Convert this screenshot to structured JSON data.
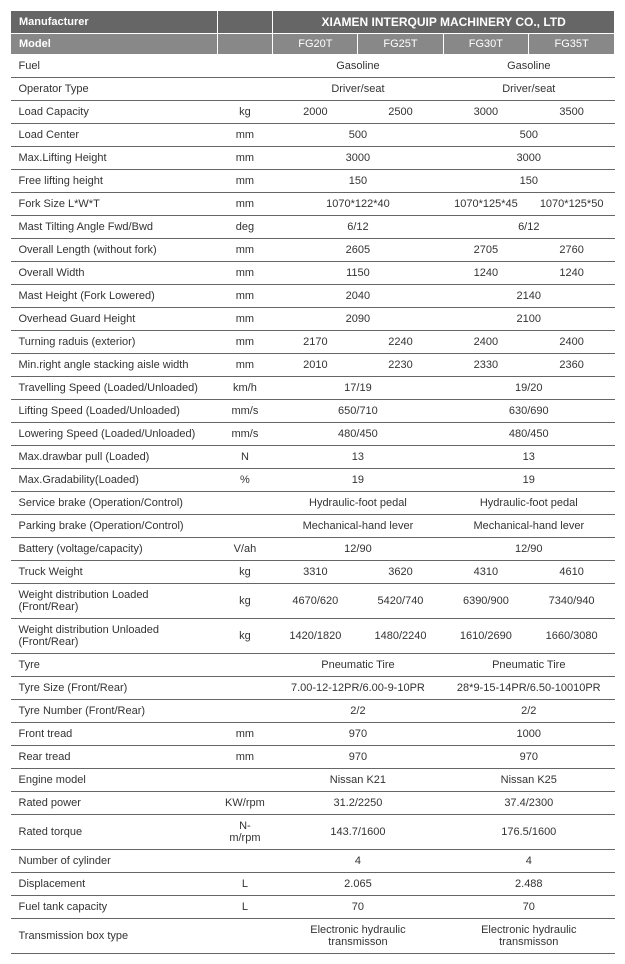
{
  "header": {
    "manufacturer_label": "Manufacturer",
    "company": "XIAMEN INTERQUIP MACHINERY CO., LTD"
  },
  "model_row": {
    "label": "Model",
    "models": [
      "FG20T",
      "FG25T",
      "FG30T",
      "FG35T"
    ]
  },
  "rows": [
    {
      "label": "Fuel",
      "unit": "",
      "span2a": "Gasoline",
      "span2b": "Gasoline"
    },
    {
      "label": "Operator Type",
      "unit": "",
      "span2a": "Driver/seat",
      "span2b": "Driver/seat"
    },
    {
      "label": "Load Capacity",
      "unit": "kg",
      "v": [
        "2000",
        "2500",
        "3000",
        "3500"
      ]
    },
    {
      "label": "Load Center",
      "unit": "mm",
      "span2a": "500",
      "span2b": "500"
    },
    {
      "label": "Max.Lifting Height",
      "unit": "mm",
      "span2a": "3000",
      "span2b": "3000"
    },
    {
      "label": "Free lifting height",
      "unit": "mm",
      "span2a": "150",
      "span2b": "150"
    },
    {
      "label": "Fork Size   L*W*T",
      "unit": "mm",
      "span2a": "1070*122*40",
      "vb": [
        "1070*125*45",
        "1070*125*50"
      ]
    },
    {
      "label": "Mast Tilting Angle   Fwd/Bwd",
      "unit": "deg",
      "span2a": "6/12",
      "span2b": "6/12"
    },
    {
      "label": "Overall Length (without fork)",
      "unit": "mm",
      "span2a": "2605",
      "vb": [
        "2705",
        "2760"
      ]
    },
    {
      "label": "Overall Width",
      "unit": "mm",
      "span2a": "1150",
      "vb": [
        "1240",
        "1240"
      ]
    },
    {
      "label": "Mast Height (Fork Lowered)",
      "unit": "mm",
      "span2a": "2040",
      "span2b": "2140"
    },
    {
      "label": "Overhead Guard Height",
      "unit": "mm",
      "span2a": "2090",
      "span2b": "2100"
    },
    {
      "label": "Turning raduis (exterior)",
      "unit": "mm",
      "v": [
        "2170",
        "2240",
        "2400",
        "2400"
      ]
    },
    {
      "label": "Min.right angle stacking aisle width",
      "unit": "mm",
      "v": [
        "2010",
        "2230",
        "2330",
        "2360"
      ]
    },
    {
      "label": "Travelling Speed (Loaded/Unloaded)",
      "unit": "km/h",
      "span2a": "17/19",
      "span2b": "19/20"
    },
    {
      "label": "Lifting Speed (Loaded/Unloaded)",
      "unit": "mm/s",
      "span2a": "650/710",
      "span2b": "630/690"
    },
    {
      "label": "Lowering Speed (Loaded/Unloaded)",
      "unit": "mm/s",
      "span2a": "480/450",
      "span2b": "480/450"
    },
    {
      "label": "Max.drawbar pull (Loaded)",
      "unit": "N",
      "span2a": "13",
      "span2b": "13"
    },
    {
      "label": "Max.Gradability(Loaded)",
      "unit": "%",
      "span2a": "19",
      "span2b": "19"
    },
    {
      "label": "Service brake (Operation/Control)",
      "unit": "",
      "span2a": "Hydraulic-foot pedal",
      "span2b": "Hydraulic-foot pedal"
    },
    {
      "label": "Parking brake (Operation/Control)",
      "unit": "",
      "span2a": "Mechanical-hand lever",
      "span2b": "Mechanical-hand lever"
    },
    {
      "label": "Battery (voltage/capacity)",
      "unit": "V/ah",
      "span2a": "12/90",
      "span2b": "12/90"
    },
    {
      "label": "Truck Weight",
      "unit": "kg",
      "v": [
        "3310",
        "3620",
        "4310",
        "4610"
      ]
    },
    {
      "label": "Weight distribution Loaded (Front/Rear)",
      "unit": "kg",
      "v": [
        "4670/620",
        "5420/740",
        "6390/900",
        "7340/940"
      ]
    },
    {
      "label": "Weight distribution Unloaded (Front/Rear)",
      "unit": "kg",
      "v": [
        "1420/1820",
        "1480/2240",
        "1610/2690",
        "1660/3080"
      ]
    },
    {
      "label": "Tyre",
      "unit": "",
      "span2a": "Pneumatic Tire",
      "span2b": "Pneumatic Tire"
    },
    {
      "label": "Tyre Size  (Front/Rear)",
      "unit": "",
      "span2a": "7.00-12-12PR/6.00-9-10PR",
      "span2b": "28*9-15-14PR/6.50-10010PR"
    },
    {
      "label": "Tyre Number  (Front/Rear)",
      "unit": "",
      "span2a": "2/2",
      "span2b": "2/2"
    },
    {
      "label": "Front tread",
      "unit": "mm",
      "span2a": "970",
      "span2b": "1000"
    },
    {
      "label": "Rear tread",
      "unit": "mm",
      "span2a": "970",
      "span2b": "970"
    },
    {
      "label": "Engine model",
      "unit": "",
      "span2a": "Nissan K21",
      "span2b": "Nissan K25"
    },
    {
      "label": "Rated power",
      "unit": "KW/rpm",
      "span2a": "31.2/2250",
      "span2b": "37.4/2300"
    },
    {
      "label": "Rated torque",
      "unit": "N-m/rpm",
      "span2a": "143.7/1600",
      "span2b": "176.5/1600"
    },
    {
      "label": "Number of cylinder",
      "unit": "",
      "span2a": "4",
      "span2b": "4"
    },
    {
      "label": "Displacement",
      "unit": "L",
      "span2a": "2.065",
      "span2b": "2.488"
    },
    {
      "label": "Fuel tank capacity",
      "unit": "L",
      "span2a": "70",
      "span2b": "70"
    },
    {
      "label": "Transmission box type",
      "unit": "",
      "span2a": "Electronic hydraulic transmisson",
      "span2b": "Electronic hydraulic transmisson"
    }
  ]
}
